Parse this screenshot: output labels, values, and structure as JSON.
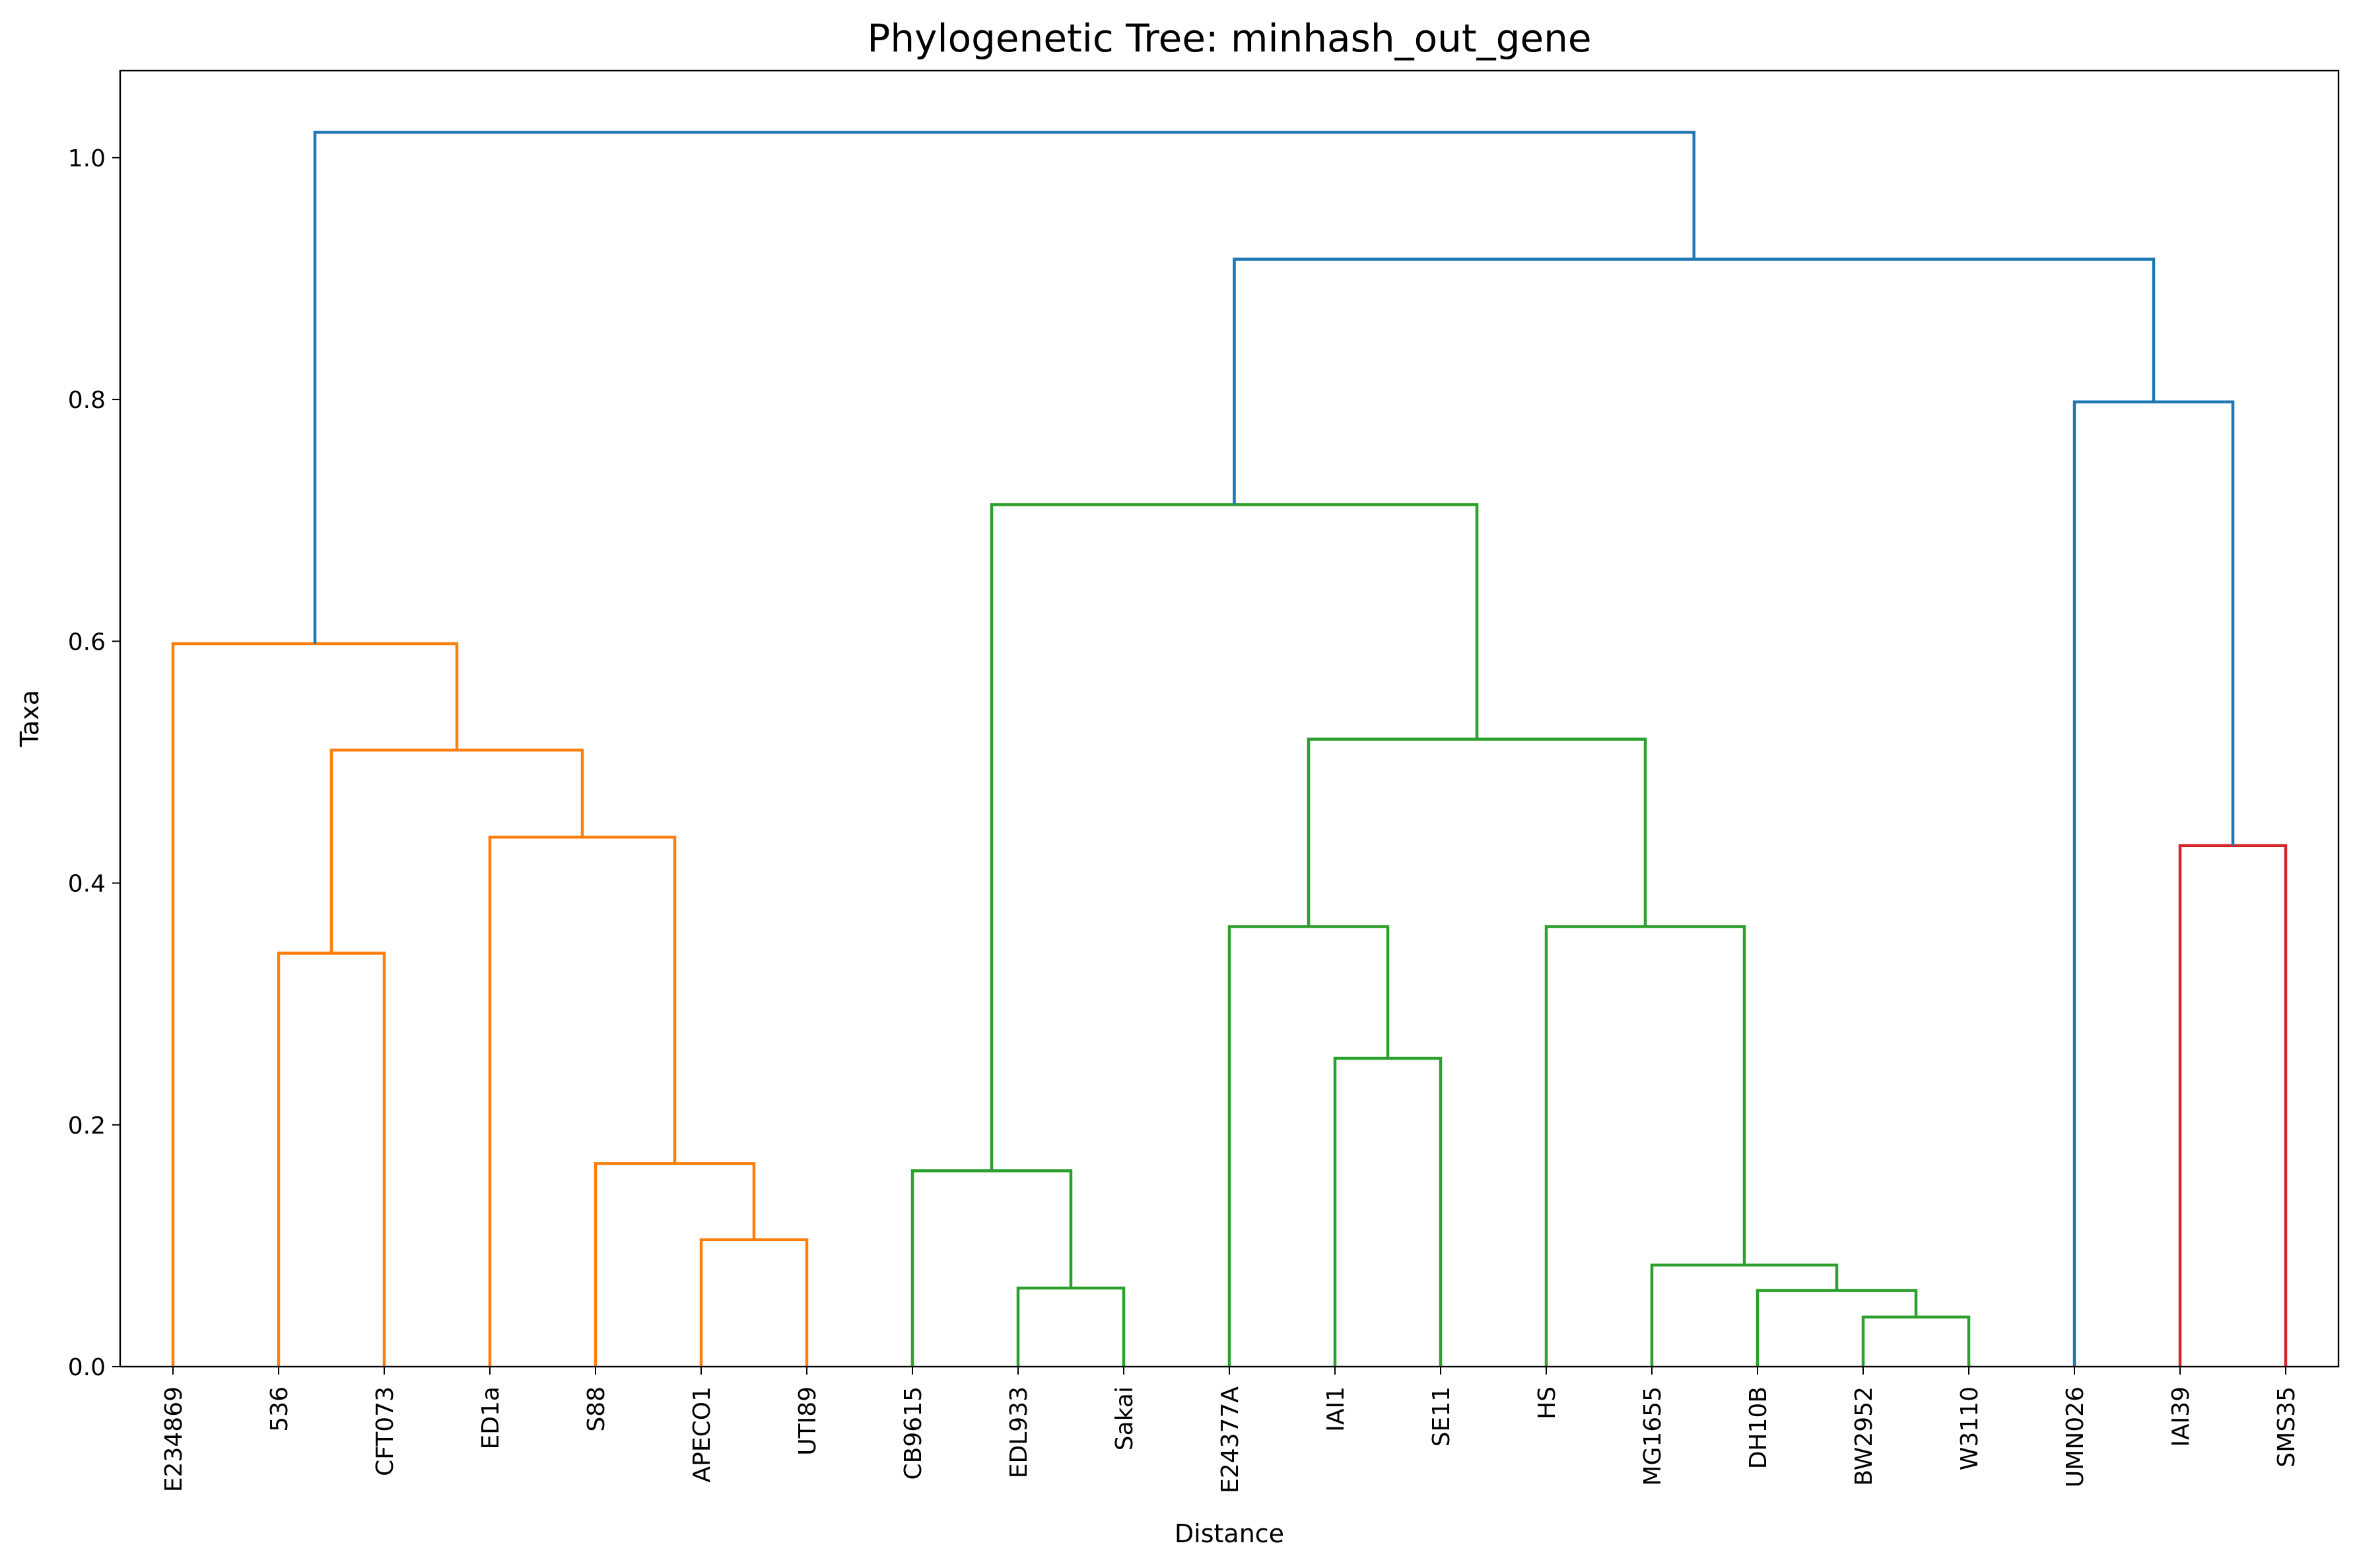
{
  "chart_data": {
    "type": "dendrogram",
    "title": "Phylogenetic Tree: minhash_out_gene",
    "xlabel": "Distance",
    "ylabel": "Taxa",
    "ylim": [
      0,
      1.072
    ],
    "yticks": [
      "0.0",
      "0.2",
      "0.4",
      "0.6",
      "0.8",
      "1.0"
    ],
    "ytick_values": [
      0,
      0.2,
      0.4,
      0.6,
      0.8,
      1.0
    ],
    "leaves": [
      "E234869",
      "536",
      "CFT073",
      "ED1a",
      "S88",
      "APECO1",
      "UTI89",
      "CB9615",
      "EDL933",
      "Sakai",
      "E24377A",
      "IAI1",
      "SE11",
      "HS",
      "MG1655",
      "DH10B",
      "BW2952",
      "W3110",
      "UMN026",
      "IAI39",
      "SMS35"
    ],
    "colors": {
      "root": "#1f77b4",
      "cluster1": "#ff7f0e",
      "cluster2": "#2ca02c",
      "cluster3": "#d62728"
    },
    "merges": [
      {
        "left": "APECO1",
        "right": "UTI89",
        "height": 0.105,
        "color": "cluster1"
      },
      {
        "left": "S88",
        "right": "APECO1+UTI89",
        "height": 0.168,
        "color": "cluster1"
      },
      {
        "left": "ED1a",
        "right": "S88+APECO1+UTI89",
        "height": 0.438,
        "color": "cluster1"
      },
      {
        "left": "536",
        "right": "CFT073",
        "height": 0.342,
        "color": "cluster1"
      },
      {
        "left": "536+CFT073",
        "right": "ED1a+S88+APECO1+UTI89",
        "height": 0.51,
        "color": "cluster1"
      },
      {
        "left": "E234869",
        "right": "536+CFT073+ED1a+S88+APECO1+UTI89",
        "height": 0.598,
        "color": "cluster1"
      },
      {
        "left": "EDL933",
        "right": "Sakai",
        "height": 0.065,
        "color": "cluster2"
      },
      {
        "left": "CB9615",
        "right": "EDL933+Sakai",
        "height": 0.162,
        "color": "cluster2"
      },
      {
        "left": "IAI1",
        "right": "SE11",
        "height": 0.255,
        "color": "cluster2"
      },
      {
        "left": "E24377A",
        "right": "IAI1+SE11",
        "height": 0.364,
        "color": "cluster2"
      },
      {
        "left": "BW2952",
        "right": "W3110",
        "height": 0.041,
        "color": "cluster2"
      },
      {
        "left": "DH10B",
        "right": "BW2952+W3110",
        "height": 0.063,
        "color": "cluster2"
      },
      {
        "left": "MG1655",
        "right": "DH10B+BW2952+W3110",
        "height": 0.084,
        "color": "cluster2"
      },
      {
        "left": "HS",
        "right": "MG1655+DH10B+BW2952+W3110",
        "height": 0.364,
        "color": "cluster2"
      },
      {
        "left": "E24377A+IAI1+SE11",
        "right": "HS+MG1655+DH10B+BW2952+W3110",
        "height": 0.519,
        "color": "cluster2"
      },
      {
        "left": "CB9615+EDL933+Sakai",
        "right": "E24377A+IAI1+SE11+HS+MG1655+DH10B+BW2952+W3110",
        "height": 0.713,
        "color": "cluster2"
      },
      {
        "left": "IAI39",
        "right": "SMS35",
        "height": 0.431,
        "color": "cluster3"
      },
      {
        "left": "UMN026",
        "right": "IAI39+SMS35",
        "height": 0.798,
        "color": "root"
      },
      {
        "left": "CB9615+EDL933+Sakai+E24377A+IAI1+SE11+HS+MG1655+DH10B+BW2952+W3110",
        "right": "UMN026+IAI39+SMS35",
        "height": 0.916,
        "color": "root"
      },
      {
        "left": "E234869+536+CFT073+ED1a+S88+APECO1+UTI89",
        "right": "CB9615+EDL933+Sakai+E24377A+IAI1+SE11+HS+MG1655+DH10B+BW2952+W3110+UMN026+IAI39+SMS35",
        "height": 1.021,
        "color": "root"
      }
    ]
  }
}
